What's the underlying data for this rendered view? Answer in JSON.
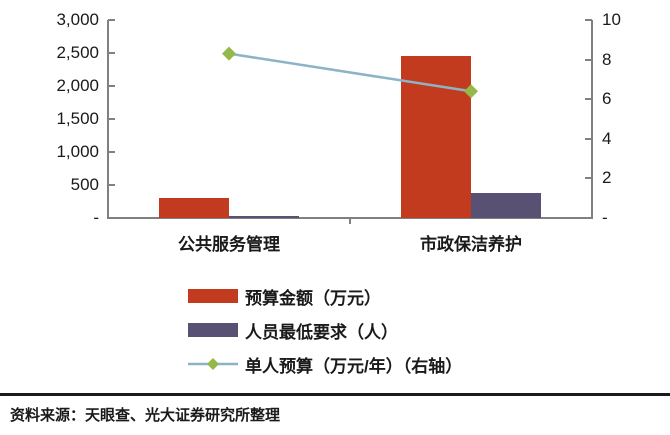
{
  "chart_data": {
    "type": "bar",
    "subtype": "combo-bar-line-dual-axis",
    "title": "",
    "categories": [
      "公共服务管理",
      "市政保洁养护"
    ],
    "series": [
      {
        "key": "budget-amount",
        "name": "预算金额（万元）",
        "kind": "bar",
        "axis": "left",
        "color": "#c33b1e",
        "values": [
          300,
          2450
        ]
      },
      {
        "key": "min-staff",
        "name": "人员最低要求（人）",
        "kind": "bar",
        "axis": "left",
        "color": "#585173",
        "values": [
          36,
          380
        ]
      },
      {
        "key": "per-person-budget",
        "name": "单人预算（万元/年）（右轴）",
        "kind": "line",
        "axis": "right",
        "color": "#8cb3c6",
        "marker": "diamond",
        "marker_color": "#94b84a",
        "values": [
          8.3,
          6.4
        ]
      }
    ],
    "left_axis": {
      "min": 0,
      "max": 3000,
      "step": 500,
      "tick_labels_bottom_up": [
        "-",
        "500",
        "1,000",
        "1,500",
        "2,000",
        "2,500",
        "3,000"
      ]
    },
    "right_axis": {
      "min": 0,
      "max": 10,
      "step": 2,
      "tick_labels_bottom_up": [
        "-",
        "2",
        "4",
        "6",
        "8",
        "10"
      ]
    },
    "grid": false,
    "legend_position": "bottom"
  },
  "footer": {
    "source_note": "资料来源：天眼查、光大证券研究所整理"
  },
  "colors": {
    "axis": "#808080",
    "text": "#1a1a1a",
    "separator": "#1a1a1a",
    "background": "#ffffff"
  }
}
